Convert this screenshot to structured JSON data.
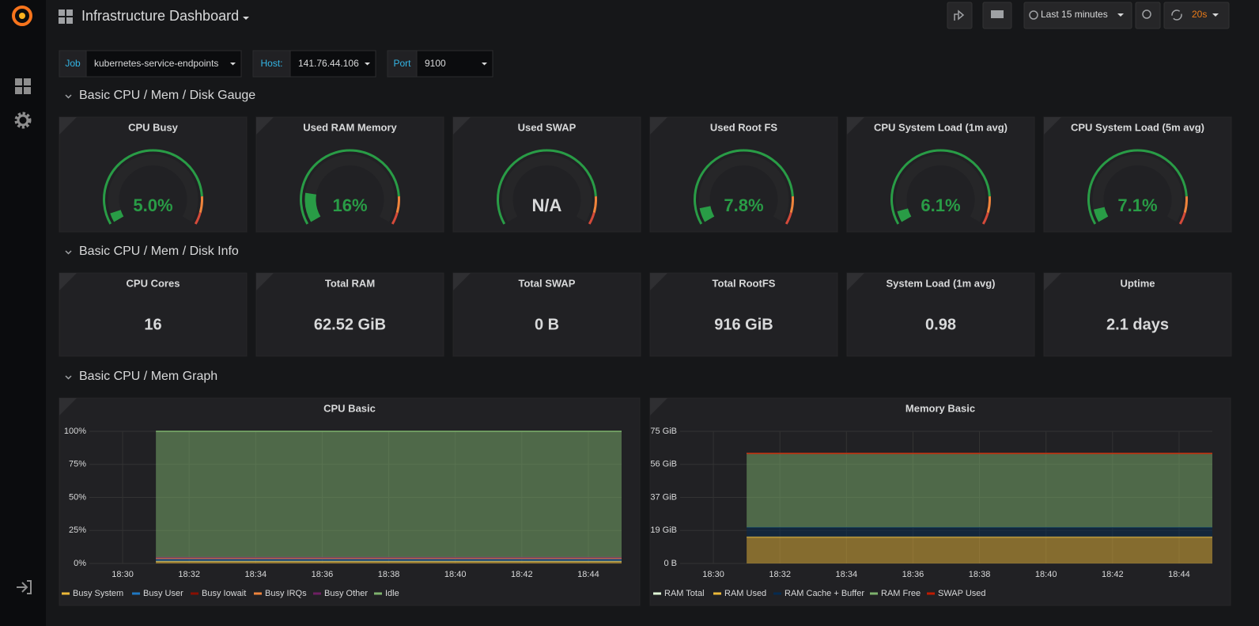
{
  "header": {
    "title": "Infrastructure Dashboard",
    "time_range": "Last 15 minutes",
    "refresh": "20s"
  },
  "variables": [
    {
      "label": "Job",
      "value": "kubernetes-service-endpoints"
    },
    {
      "label": "Host:",
      "value": "141.76.44.106"
    },
    {
      "label": "Port",
      "value": "9100"
    }
  ],
  "sections": [
    "Basic CPU / Mem / Disk Gauge",
    "Basic CPU / Mem / Disk Info",
    "Basic CPU / Mem Graph"
  ],
  "gauge_lim": [
    0,
    100
  ],
  "gauges": [
    {
      "title": "CPU Busy",
      "value": 5.0,
      "value_label": "5.0%"
    },
    {
      "title": "Used RAM Memory",
      "value": 16,
      "value_label": "16%"
    },
    {
      "title": "Used SWAP",
      "value": null,
      "value_label": "N/A"
    },
    {
      "title": "Used Root FS",
      "value": 7.8,
      "value_label": "7.8%"
    },
    {
      "title": "CPU System Load (1m avg)",
      "value": 6.1,
      "value_label": "6.1%"
    },
    {
      "title": "CPU System Load (5m avg)",
      "value": 7.1,
      "value_label": "7.1%"
    }
  ],
  "stats": [
    {
      "title": "CPU Cores",
      "value": "16"
    },
    {
      "title": "Total RAM",
      "value": "62.52 GiB"
    },
    {
      "title": "Total SWAP",
      "value": "0 B"
    },
    {
      "title": "Total RootFS",
      "value": "916 GiB"
    },
    {
      "title": "System Load (1m avg)",
      "value": "0.98"
    },
    {
      "title": "Uptime",
      "value": "2.1 days"
    }
  ],
  "chart_data": [
    {
      "type": "area",
      "title": "CPU Basic",
      "x": [
        "18:31",
        "18:33",
        "18:35",
        "18:37",
        "18:39",
        "18:41",
        "18:43",
        "18:45"
      ],
      "xlim": [
        "18:29",
        "18:45"
      ],
      "xticks": [
        "18:30",
        "18:32",
        "18:34",
        "18:36",
        "18:38",
        "18:40",
        "18:42",
        "18:44"
      ],
      "ylim": [
        0,
        100
      ],
      "yticks": [
        {
          "value": 0,
          "label": "0%"
        },
        {
          "value": 25,
          "label": "25%"
        },
        {
          "value": 50,
          "label": "50%"
        },
        {
          "value": 75,
          "label": "75%"
        },
        {
          "value": 100,
          "label": "100%"
        }
      ],
      "grid": true,
      "series": [
        {
          "name": "Busy System",
          "color": "#eab839",
          "stack": true,
          "values": [
            1.5,
            1.5,
            1.5,
            1.5,
            1.5,
            1.5,
            1.5,
            1.5
          ]
        },
        {
          "name": "Busy User",
          "color": "#1f78c1",
          "stack": true,
          "values": [
            2,
            2,
            2,
            2,
            2,
            2,
            2,
            2
          ]
        },
        {
          "name": "Busy Iowait",
          "color": "#890f02",
          "stack": true,
          "values": [
            0.3,
            0.3,
            0.3,
            0.3,
            0.3,
            0.3,
            0.3,
            0.3
          ]
        },
        {
          "name": "Busy IRQs",
          "color": "#ef843c",
          "stack": true,
          "values": [
            0.2,
            0.2,
            0.2,
            0.2,
            0.2,
            0.2,
            0.2,
            0.2
          ]
        },
        {
          "name": "Busy Other",
          "color": "#6d1f62",
          "stack": true,
          "values": [
            0.5,
            0.5,
            0.5,
            0.5,
            0.5,
            0.5,
            0.5,
            0.5
          ]
        },
        {
          "name": "Idle",
          "color": "#7eb26d",
          "stack": true,
          "values": [
            95.5,
            95.5,
            95.5,
            95.5,
            95.5,
            95.5,
            95.5,
            95.5
          ]
        }
      ]
    },
    {
      "type": "area",
      "title": "Memory Basic",
      "x": [
        "18:31",
        "18:33",
        "18:35",
        "18:37",
        "18:39",
        "18:41",
        "18:43",
        "18:45"
      ],
      "xlim": [
        "18:29",
        "18:45"
      ],
      "xticks": [
        "18:30",
        "18:32",
        "18:34",
        "18:36",
        "18:38",
        "18:40",
        "18:42",
        "18:44"
      ],
      "ylim": [
        0,
        75
      ],
      "yticks": [
        {
          "value": 0,
          "label": "0 B"
        },
        {
          "value": 18.75,
          "label": "19 GiB"
        },
        {
          "value": 37.5,
          "label": "37 GiB"
        },
        {
          "value": 56.25,
          "label": "56 GiB"
        },
        {
          "value": 75,
          "label": "75 GiB"
        }
      ],
      "grid": true,
      "series": [
        {
          "name": "RAM Total",
          "color": "#e0f9d7",
          "stack": false,
          "values": [
            62.52,
            62.52,
            62.52,
            62.52,
            62.52,
            62.52,
            62.52,
            62.52
          ]
        },
        {
          "name": "RAM Used",
          "color": "#eab839",
          "stack": true,
          "values": [
            15,
            15,
            15,
            15,
            15,
            15,
            15,
            15
          ]
        },
        {
          "name": "RAM Cache + Buffer",
          "color": "#052b51",
          "stack": true,
          "values": [
            5.5,
            5.5,
            5.5,
            5.5,
            5.5,
            5.5,
            5.5,
            5.5
          ]
        },
        {
          "name": "RAM Free",
          "color": "#7eb26d",
          "stack": true,
          "values": [
            42,
            42,
            42,
            42,
            42,
            42,
            42,
            42
          ]
        },
        {
          "name": "SWAP Used",
          "color": "#bf1b00",
          "stack": true,
          "values": [
            0,
            0,
            0,
            0,
            0,
            0,
            0,
            0
          ]
        }
      ]
    }
  ]
}
